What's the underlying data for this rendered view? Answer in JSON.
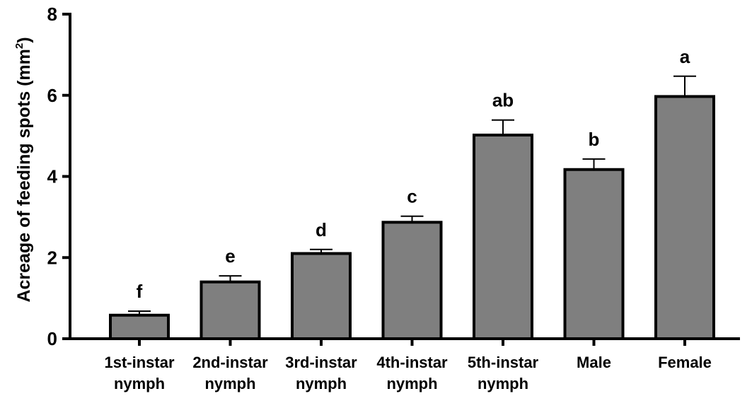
{
  "chart_data": {
    "type": "bar",
    "categories": [
      [
        "1st-instar",
        "nymph"
      ],
      [
        "2nd-instar",
        "nymph"
      ],
      [
        "3rd-instar",
        "nymph"
      ],
      [
        "4th-instar",
        "nymph"
      ],
      [
        "5th-instar",
        "nymph"
      ],
      [
        "Male"
      ],
      [
        "Female"
      ]
    ],
    "values": [
      0.58,
      1.4,
      2.1,
      2.87,
      5.02,
      4.17,
      5.97
    ],
    "errors": [
      0.1,
      0.15,
      0.1,
      0.15,
      0.37,
      0.26,
      0.5
    ],
    "letters": [
      "f",
      "e",
      "d",
      "c",
      "ab",
      "b",
      "a"
    ],
    "ylabel": "Acreage of feeding spots (mm",
    "ylabel_superscript": "2",
    "ylabel_suffix": ")",
    "ylim": [
      0,
      8
    ],
    "yticks": [
      "0",
      "2",
      "4",
      "6",
      "8"
    ],
    "grid": false,
    "bar_color": "#7f7f7f",
    "edge_color": "#000000"
  }
}
